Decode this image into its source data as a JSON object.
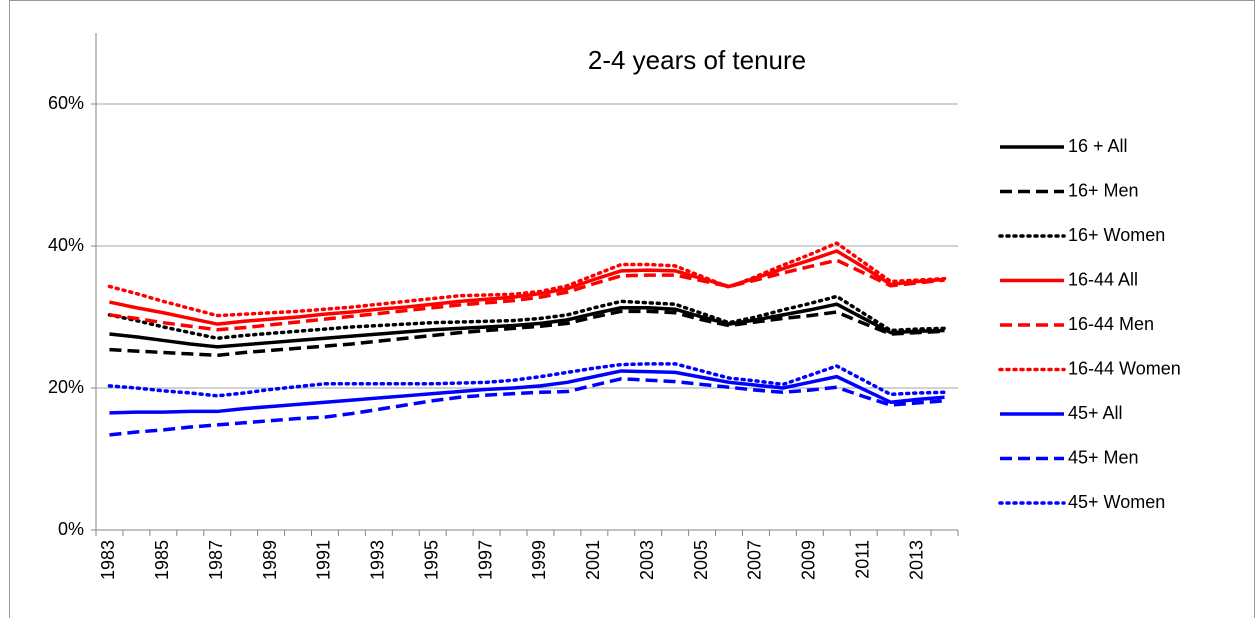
{
  "chart_data": {
    "type": "line",
    "title": "2-4 years of tenure",
    "categories": [
      "1983",
      null,
      "1985",
      null,
      "1987",
      null,
      "1989",
      null,
      "1991",
      null,
      "1993",
      null,
      "1995",
      null,
      "1997",
      null,
      "1999",
      null,
      "2001",
      null,
      "2003",
      null,
      "2005",
      null,
      "2007",
      null,
      "2009",
      null,
      "2011",
      null,
      "2013",
      null
    ],
    "ylim": [
      0,
      70
    ],
    "yticks": [
      {
        "value": 0,
        "label": "0%"
      },
      {
        "value": 20,
        "label": "20%"
      },
      {
        "value": 40,
        "label": "40%"
      },
      {
        "value": 60,
        "label": "60%"
      }
    ],
    "grid": true,
    "legend": "right",
    "series": [
      {
        "name": "16 + All",
        "color": "#000000",
        "style": "solid",
        "values": [
          27.6,
          27.2,
          26.7,
          26.2,
          25.8,
          26.1,
          26.4,
          26.7,
          27.0,
          27.3,
          27.6,
          27.9,
          28.2,
          28.4,
          28.6,
          28.8,
          29.1,
          29.6,
          30.5,
          31.3,
          31.3,
          31.1,
          30.0,
          29.0,
          29.6,
          30.3,
          31.0,
          31.8,
          29.8,
          27.8,
          28.0,
          28.1
        ]
      },
      {
        "name": "16+ Men",
        "color": "#000000",
        "style": "dash",
        "values": [
          25.4,
          25.2,
          25.0,
          24.8,
          24.6,
          25.0,
          25.3,
          25.6,
          25.9,
          26.2,
          26.6,
          27.0,
          27.4,
          27.8,
          28.1,
          28.4,
          28.7,
          29.1,
          30.0,
          30.8,
          30.8,
          30.6,
          29.6,
          28.8,
          29.3,
          29.8,
          30.2,
          30.7,
          29.1,
          27.6,
          27.8,
          28.0
        ]
      },
      {
        "name": "16+ Women",
        "color": "#000000",
        "style": "dot",
        "values": [
          30.3,
          29.5,
          28.6,
          27.8,
          27.0,
          27.4,
          27.7,
          28.0,
          28.3,
          28.6,
          28.8,
          29.0,
          29.2,
          29.3,
          29.4,
          29.5,
          29.8,
          30.3,
          31.3,
          32.2,
          32.0,
          31.8,
          30.5,
          29.2,
          30.0,
          31.0,
          31.9,
          32.9,
          30.5,
          28.1,
          28.3,
          28.4
        ]
      },
      {
        "name": "16-44 All",
        "color": "#ff0000",
        "style": "solid",
        "values": [
          32.1,
          31.3,
          30.6,
          29.8,
          29.0,
          29.4,
          29.7,
          30.0,
          30.4,
          30.7,
          31.1,
          31.4,
          31.8,
          32.2,
          32.5,
          32.8,
          33.3,
          34.0,
          35.3,
          36.5,
          36.6,
          36.5,
          35.4,
          34.3,
          35.5,
          36.8,
          38.0,
          39.3,
          37.0,
          34.6,
          35.0,
          35.3
        ]
      },
      {
        "name": "16-44 Men",
        "color": "#ff0000",
        "style": "dash",
        "values": [
          30.3,
          29.8,
          29.2,
          28.7,
          28.2,
          28.5,
          28.9,
          29.3,
          29.7,
          30.1,
          30.5,
          30.9,
          31.3,
          31.7,
          32.0,
          32.3,
          32.8,
          33.5,
          34.7,
          35.8,
          35.9,
          35.9,
          35.1,
          34.3,
          35.2,
          36.2,
          37.1,
          38.0,
          36.2,
          34.4,
          34.8,
          35.2
        ]
      },
      {
        "name": "16-44 Women",
        "color": "#ff0000",
        "style": "dot",
        "values": [
          34.3,
          33.3,
          32.2,
          31.2,
          30.2,
          30.4,
          30.6,
          30.8,
          31.1,
          31.4,
          31.8,
          32.2,
          32.6,
          33.0,
          33.1,
          33.2,
          33.6,
          34.4,
          35.9,
          37.4,
          37.4,
          37.2,
          35.7,
          34.2,
          35.7,
          37.3,
          38.8,
          40.4,
          37.7,
          35.0,
          35.2,
          35.4
        ]
      },
      {
        "name": "45+ All",
        "color": "#0000ff",
        "style": "solid",
        "values": [
          16.5,
          16.6,
          16.6,
          16.7,
          16.7,
          17.1,
          17.4,
          17.7,
          18.0,
          18.3,
          18.6,
          18.9,
          19.2,
          19.5,
          19.8,
          20.0,
          20.3,
          20.8,
          21.6,
          22.4,
          22.3,
          22.2,
          21.5,
          20.8,
          20.4,
          20.0,
          20.8,
          21.6,
          19.8,
          18.0,
          18.4,
          18.7
        ]
      },
      {
        "name": "45+ Men",
        "color": "#0000ff",
        "style": "dash",
        "values": [
          13.4,
          13.8,
          14.1,
          14.5,
          14.8,
          15.1,
          15.4,
          15.7,
          15.9,
          16.4,
          17.0,
          17.6,
          18.2,
          18.7,
          19.0,
          19.2,
          19.4,
          19.5,
          20.4,
          21.3,
          21.1,
          20.9,
          20.5,
          20.1,
          19.7,
          19.4,
          19.7,
          20.1,
          18.8,
          17.6,
          17.9,
          18.2
        ]
      },
      {
        "name": "45+ Women",
        "color": "#0000ff",
        "style": "dot",
        "values": [
          20.3,
          20.0,
          19.6,
          19.3,
          18.9,
          19.3,
          19.8,
          20.2,
          20.6,
          20.6,
          20.6,
          20.6,
          20.6,
          20.7,
          20.8,
          21.1,
          21.6,
          22.2,
          22.8,
          23.3,
          23.4,
          23.4,
          22.4,
          21.4,
          21.0,
          20.5,
          21.8,
          23.1,
          21.1,
          19.1,
          19.3,
          19.4
        ]
      }
    ]
  }
}
